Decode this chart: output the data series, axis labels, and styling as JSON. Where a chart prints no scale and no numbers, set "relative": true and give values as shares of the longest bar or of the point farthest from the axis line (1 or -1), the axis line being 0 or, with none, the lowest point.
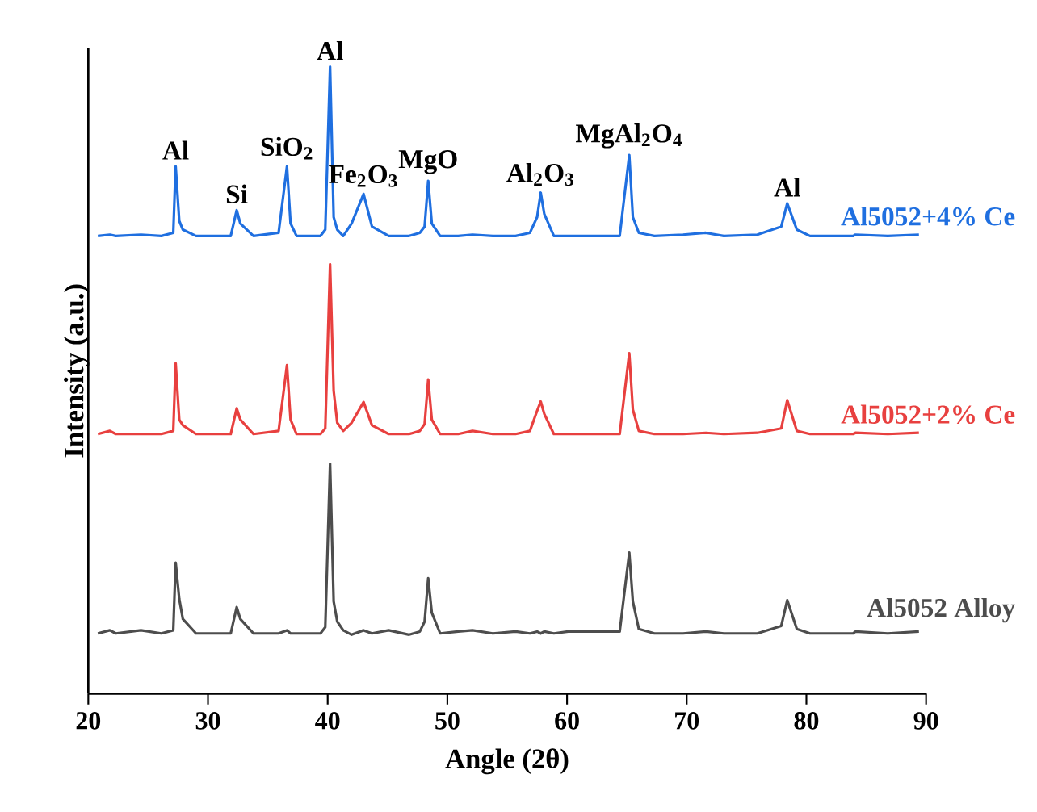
{
  "chart_data": {
    "type": "line",
    "relative": true,
    "xlabel": "Angle (2θ)",
    "ylabel": "Intensity (a.u.)",
    "xlim": [
      20,
      90
    ],
    "xticks": [
      20,
      30,
      40,
      50,
      60,
      70,
      80,
      90
    ],
    "x": [
      20.8,
      21.8,
      22.3,
      24.4,
      26.1,
      27.1,
      27.3,
      27.6,
      27.9,
      29.0,
      31.9,
      32.4,
      32.7,
      33.8,
      35.9,
      36.6,
      36.9,
      37.4,
      39.4,
      39.8,
      40.2,
      40.5,
      40.8,
      41.3,
      42.0,
      43.0,
      43.7,
      45.1,
      46.8,
      47.7,
      48.1,
      48.4,
      48.7,
      49.4,
      50.9,
      52.1,
      53.8,
      55.7,
      56.9,
      57.5,
      57.8,
      58.1,
      58.9,
      60.1,
      62.9,
      64.4,
      65.2,
      65.5,
      66.0,
      67.3,
      69.7,
      71.6,
      73.1,
      75.9,
      77.9,
      78.4,
      79.2,
      80.3,
      83.9,
      84.1,
      86.8,
      89.4
    ],
    "series": [
      {
        "name": "Al5052+4% Ce",
        "color": "#1f6fe0",
        "values": [
          0.73,
          0.732,
          0.73,
          0.732,
          0.73,
          0.735,
          0.841,
          0.754,
          0.74,
          0.73,
          0.73,
          0.771,
          0.75,
          0.73,
          0.735,
          0.841,
          0.75,
          0.73,
          0.73,
          0.74,
          1.0,
          0.76,
          0.74,
          0.73,
          0.75,
          0.797,
          0.745,
          0.73,
          0.73,
          0.735,
          0.745,
          0.818,
          0.75,
          0.73,
          0.73,
          0.732,
          0.73,
          0.73,
          0.735,
          0.76,
          0.799,
          0.765,
          0.73,
          0.73,
          0.73,
          0.73,
          0.859,
          0.76,
          0.735,
          0.73,
          0.732,
          0.735,
          0.73,
          0.732,
          0.745,
          0.782,
          0.74,
          0.73,
          0.73,
          0.732,
          0.73,
          0.732
        ]
      },
      {
        "name": "Al5052+2% Ce",
        "color": "#e8403f",
        "values": [
          0.414,
          0.419,
          0.414,
          0.414,
          0.414,
          0.419,
          0.527,
          0.437,
          0.428,
          0.414,
          0.414,
          0.455,
          0.437,
          0.414,
          0.419,
          0.524,
          0.437,
          0.414,
          0.414,
          0.423,
          0.685,
          0.483,
          0.432,
          0.419,
          0.432,
          0.465,
          0.428,
          0.414,
          0.414,
          0.419,
          0.43,
          0.501,
          0.437,
          0.414,
          0.414,
          0.419,
          0.414,
          0.414,
          0.419,
          0.451,
          0.466,
          0.446,
          0.414,
          0.414,
          0.414,
          0.414,
          0.543,
          0.453,
          0.419,
          0.414,
          0.414,
          0.416,
          0.414,
          0.416,
          0.423,
          0.468,
          0.419,
          0.414,
          0.414,
          0.416,
          0.414,
          0.416
        ]
      },
      {
        "name": "Al5052 Alloy",
        "color": "#4d4d4d",
        "values": [
          0.096,
          0.101,
          0.096,
          0.101,
          0.096,
          0.101,
          0.209,
          0.151,
          0.119,
          0.096,
          0.096,
          0.138,
          0.119,
          0.096,
          0.096,
          0.101,
          0.096,
          0.096,
          0.096,
          0.106,
          0.367,
          0.147,
          0.115,
          0.101,
          0.094,
          0.101,
          0.096,
          0.101,
          0.094,
          0.099,
          0.115,
          0.184,
          0.129,
          0.096,
          0.099,
          0.101,
          0.096,
          0.099,
          0.096,
          0.099,
          0.096,
          0.099,
          0.096,
          0.099,
          0.099,
          0.099,
          0.225,
          0.147,
          0.103,
          0.096,
          0.096,
          0.099,
          0.096,
          0.096,
          0.108,
          0.149,
          0.103,
          0.096,
          0.096,
          0.099,
          0.096,
          0.099
        ]
      }
    ],
    "annotations": [
      {
        "text": "Al",
        "x": 27.3,
        "y": 0.841
      },
      {
        "text": "Si",
        "x": 32.4,
        "y": 0.771
      },
      {
        "text": "SiO$_{2}$",
        "x": 36.6,
        "y": 0.841
      },
      {
        "text": "Al",
        "x": 40.2,
        "y": 1.0
      },
      {
        "text": "Fe$_{2}$O$_{3}$",
        "x": 43.0,
        "y": 0.797
      },
      {
        "text": "MgO",
        "x": 48.4,
        "y": 0.818
      },
      {
        "text": "Al$_{2}$O$_{3}$",
        "x": 57.8,
        "y": 0.799
      },
      {
        "text": "MgAl$_{2}$O$_{4}$",
        "x": 65.2,
        "y": 0.859
      },
      {
        "text": "Al",
        "x": 78.4,
        "y": 0.782
      }
    ]
  }
}
